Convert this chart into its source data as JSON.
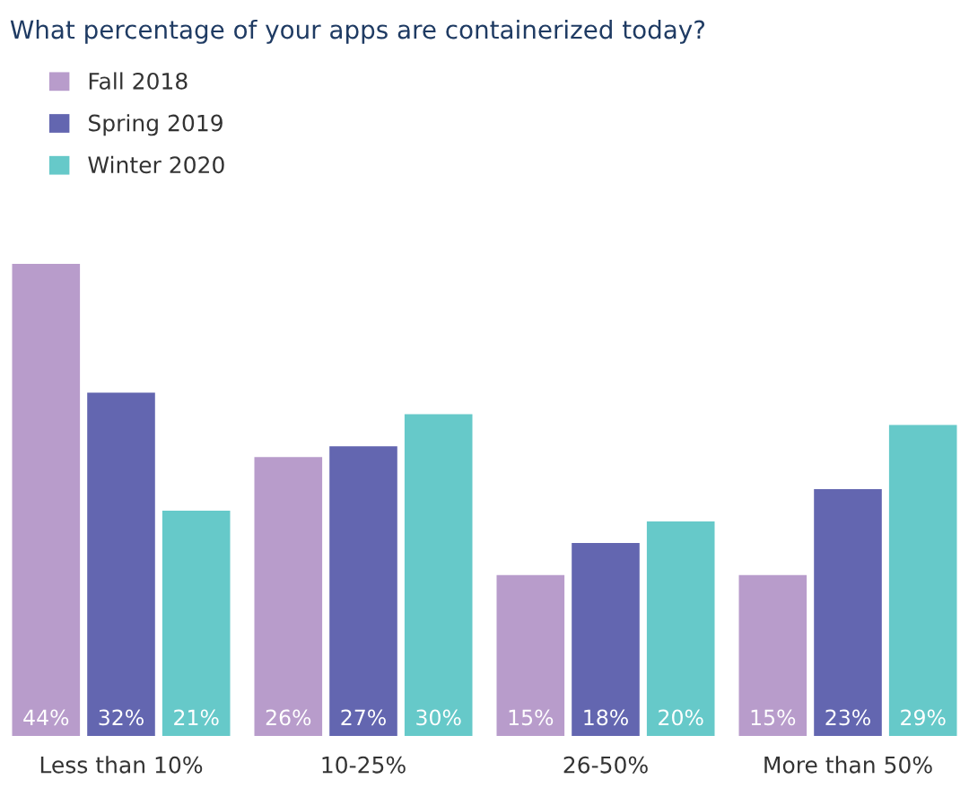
{
  "chart_data": {
    "type": "bar",
    "title": "What percentage of your apps are containerized today?",
    "categories": [
      "Less than 10%",
      "10-25%",
      "26-50%",
      "More than 50%"
    ],
    "series": [
      {
        "name": "Fall 2018",
        "color": "#b89ccb",
        "values": [
          44,
          26,
          15,
          15
        ],
        "value_labels": [
          "44%",
          "26%",
          "15%",
          "15%"
        ]
      },
      {
        "name": "Spring 2019",
        "color": "#6366b0",
        "values": [
          32,
          27,
          18,
          23
        ],
        "value_labels": [
          "32%",
          "27%",
          "18%",
          "23%"
        ]
      },
      {
        "name": "Winter 2020",
        "color": "#66c9c9",
        "values": [
          21,
          30,
          20,
          29
        ],
        "value_labels": [
          "21%",
          "30%",
          "20%",
          "29%"
        ]
      }
    ],
    "grid": false,
    "legend": "top left",
    "tick_labels": "x"
  }
}
